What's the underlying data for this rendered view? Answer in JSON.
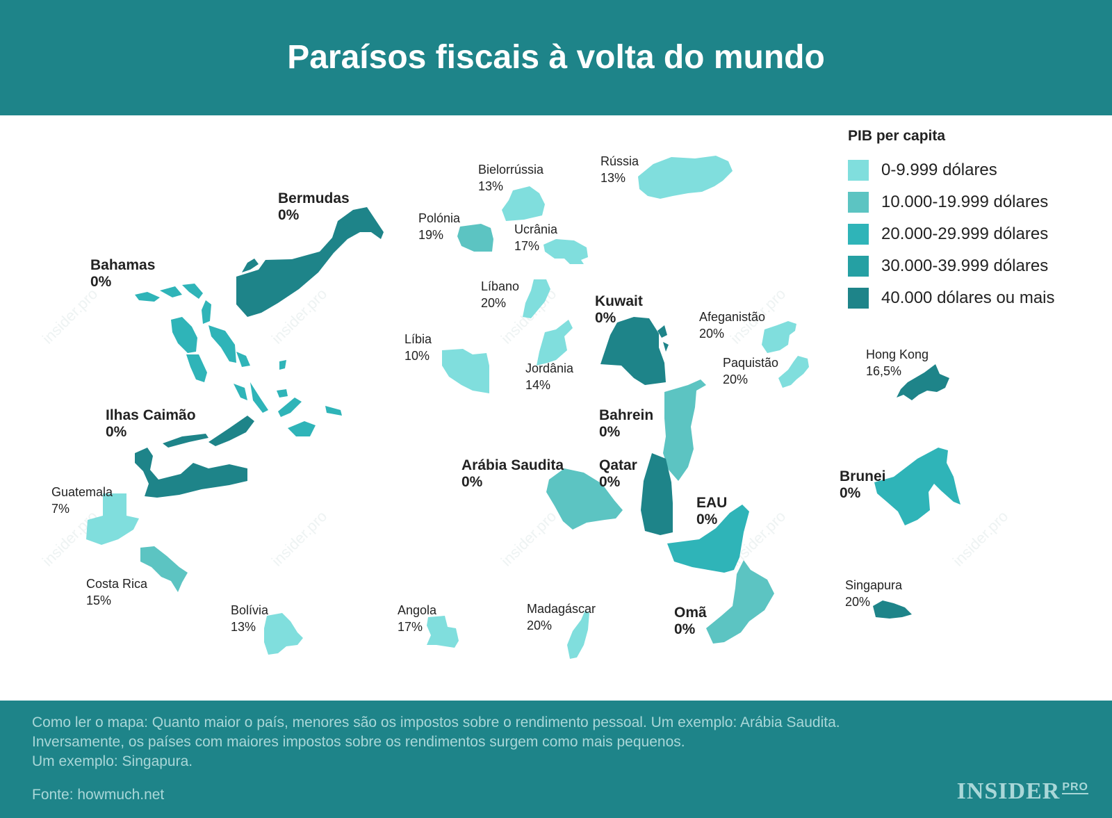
{
  "title": "Paraísos fiscais à volta do mundo",
  "legend": {
    "title": "PIB per capita",
    "items": [
      {
        "label": "0-9.999 dólares",
        "color": "#80dedd"
      },
      {
        "label": "10.000-19.999 dólares",
        "color": "#5cc4c2"
      },
      {
        "label": "20.000-29.999 dólares",
        "color": "#2fb4b8"
      },
      {
        "label": "30.000-39.999 dólares",
        "color": "#25a0a3"
      },
      {
        "label": "40.000 dólares ou mais",
        "color": "#1e8489"
      }
    ]
  },
  "countries": [
    {
      "name": "Bermudas",
      "tax": "0%"
    },
    {
      "name": "Bahamas",
      "tax": "0%"
    },
    {
      "name": "Ilhas Caimão",
      "tax": "0%"
    },
    {
      "name": "Guatemala",
      "tax": "7%"
    },
    {
      "name": "Costa Rica",
      "tax": "15%"
    },
    {
      "name": "Bolívia",
      "tax": "13%"
    },
    {
      "name": "Angola",
      "tax": "17%"
    },
    {
      "name": "Madagáscar",
      "tax": "20%"
    },
    {
      "name": "Bielorrússia",
      "tax": "13%"
    },
    {
      "name": "Rússia",
      "tax": "13%"
    },
    {
      "name": "Polónia",
      "tax": "19%"
    },
    {
      "name": "Ucrânia",
      "tax": "17%"
    },
    {
      "name": "Líbano",
      "tax": "20%"
    },
    {
      "name": "Líbia",
      "tax": "10%"
    },
    {
      "name": "Jordânia",
      "tax": "14%"
    },
    {
      "name": "Kuwait",
      "tax": "0%"
    },
    {
      "name": "Afeganistão",
      "tax": "20%"
    },
    {
      "name": "Paquistão",
      "tax": "20%"
    },
    {
      "name": "Bahrein",
      "tax": "0%"
    },
    {
      "name": "Arábia Saudita",
      "tax": "0%"
    },
    {
      "name": "Qatar",
      "tax": "0%"
    },
    {
      "name": "EAU",
      "tax": "0%"
    },
    {
      "name": "Omã",
      "tax": "0%"
    },
    {
      "name": "Hong Kong",
      "tax": "16,5%"
    },
    {
      "name": "Brunei",
      "tax": "0%"
    },
    {
      "name": "Singapura",
      "tax": "20%"
    }
  ],
  "watermark": "insider.pro",
  "footer": {
    "note_lines": [
      "Como ler o mapa: Quanto maior o país, menores são os impostos sobre o rendimento pessoal. Um exemplo: Arábia Saudita.",
      "Inversamente, os países com maiores impostos sobre os rendimentos surgem como mais pequenos.",
      "Um exemplo: Singapura."
    ],
    "source": "Fonte: howmuch.net",
    "logo_text": "INSIDER",
    "logo_sup": "PRO"
  }
}
